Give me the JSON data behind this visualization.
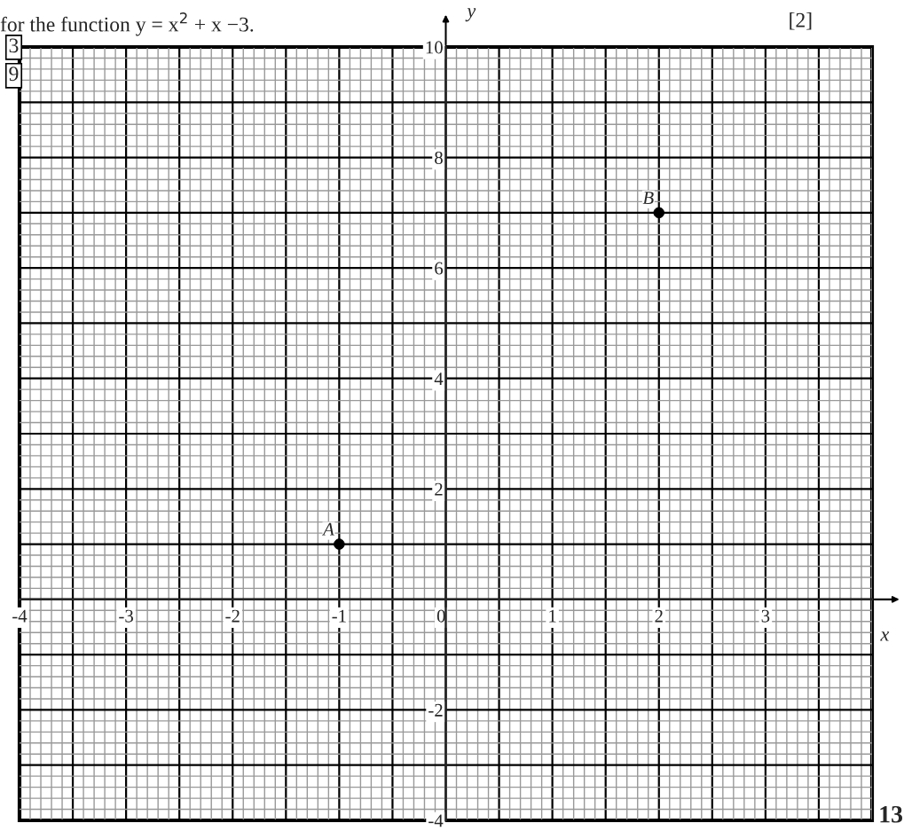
{
  "chart_data": {
    "type": "scatter",
    "title": "for the function y = x$^{2}$ + x −3.",
    "xlabel": "x",
    "ylabel": "y",
    "x": [
      -1,
      2
    ],
    "series": [
      {
        "color": "#000000",
        "values": [
          1,
          7
        ]
      }
    ],
    "marker": "circle",
    "xlim": [
      -4,
      4
    ],
    "ylim": [
      -4,
      10
    ],
    "xticks": [
      -4,
      {
        "value": -3.5,
        "label": null
      },
      -3,
      {
        "value": -2.5,
        "label": null
      },
      -2,
      {
        "value": -1.5,
        "label": null
      },
      -1,
      {
        "value": -0.5,
        "label": null
      },
      0,
      {
        "value": 0.5,
        "label": null
      },
      1,
      {
        "value": 1.5,
        "label": null
      },
      2,
      {
        "value": 2.5,
        "label": null
      },
      3,
      {
        "value": 3.5,
        "label": null
      }
    ],
    "yticks": [
      -4,
      {
        "value": -3,
        "label": null
      },
      -2,
      {
        "value": -1,
        "label": null
      },
      {
        "value": 0,
        "label": null
      },
      {
        "value": 1,
        "label": null
      },
      2,
      {
        "value": 3,
        "label": null
      },
      4,
      {
        "value": 5,
        "label": null
      },
      6,
      {
        "value": 7,
        "label": null
      },
      8,
      {
        "value": 9,
        "label": null
      },
      10
    ],
    "grid": true,
    "annotations": [
      "[2]",
      "3",
      "9",
      "13",
      {
        "text": "A",
        "x": -1,
        "y": 1
      },
      {
        "text": "B",
        "x": 2,
        "y": 7
      }
    ]
  }
}
